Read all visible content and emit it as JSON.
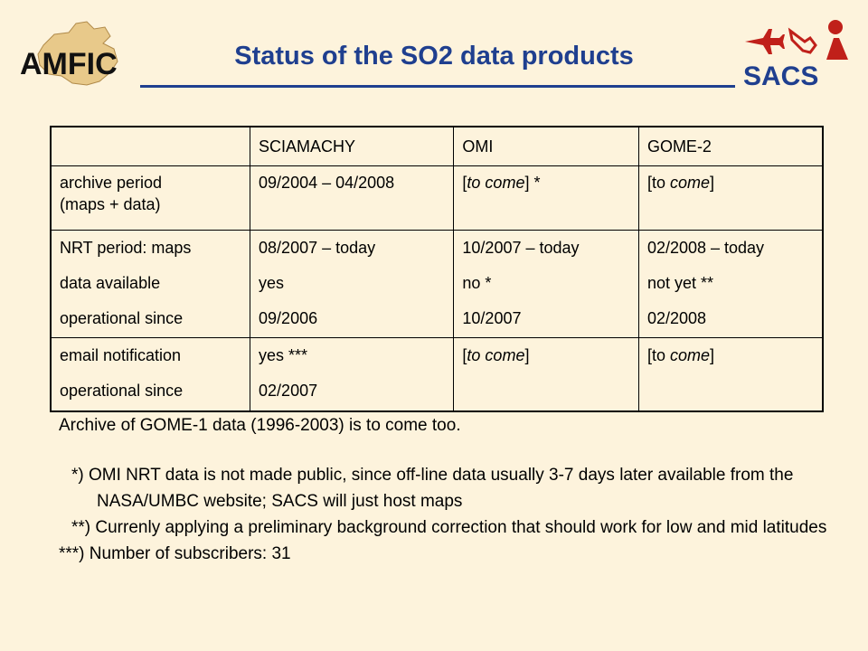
{
  "header": {
    "title": "Status of the SO2 data products",
    "left_logo_text": "AMFIC",
    "right_logo_text": "SACS"
  },
  "table": {
    "columns": [
      "",
      "SCIAMACHY",
      "OMI",
      "GOME-2"
    ],
    "archive": {
      "label_1": "archive period",
      "label_2": "(maps + data)",
      "sciamachy": "09/2004 – 04/2008",
      "omi_open": "[",
      "omi_italic": "to come",
      "omi_close": "] *",
      "gome2_open": "[to ",
      "gome2_italic": "come",
      "gome2_close": "]"
    },
    "nrt": {
      "labels": [
        "NRT period: maps",
        "data available",
        "operational since"
      ],
      "sciamachy": [
        "08/2007 – today",
        "yes",
        "09/2006"
      ],
      "omi": [
        "10/2007 – today",
        "no *",
        "10/2007"
      ],
      "gome2": [
        "02/2008 – today",
        "not yet **",
        "02/2008"
      ]
    },
    "email": {
      "labels": [
        "email notification",
        "operational since"
      ],
      "sciamachy": [
        "yes ***",
        "02/2007"
      ],
      "omi_open": "[",
      "omi_italic": "to come",
      "omi_close": "]",
      "gome2_open": "[to ",
      "gome2_italic": "come",
      "gome2_close": "]"
    }
  },
  "notes": {
    "archive_note": "Archive of GOME-1 data (1996-2003) is to come too.",
    "footnote_1": "*) OMI NRT data is not made public, since off-line data usually 3-7 days later available from the NASA/UMBC website; SACS will just host maps",
    "footnote_2": "**) Currenly applying a preliminary background correction that should work for low and mid latitudes",
    "footnote_3": "***) Number of subscribers: 31"
  },
  "colors": {
    "title": "#1f3f8f",
    "background": "#fdf3dc",
    "logo_red": "#c0201a"
  }
}
